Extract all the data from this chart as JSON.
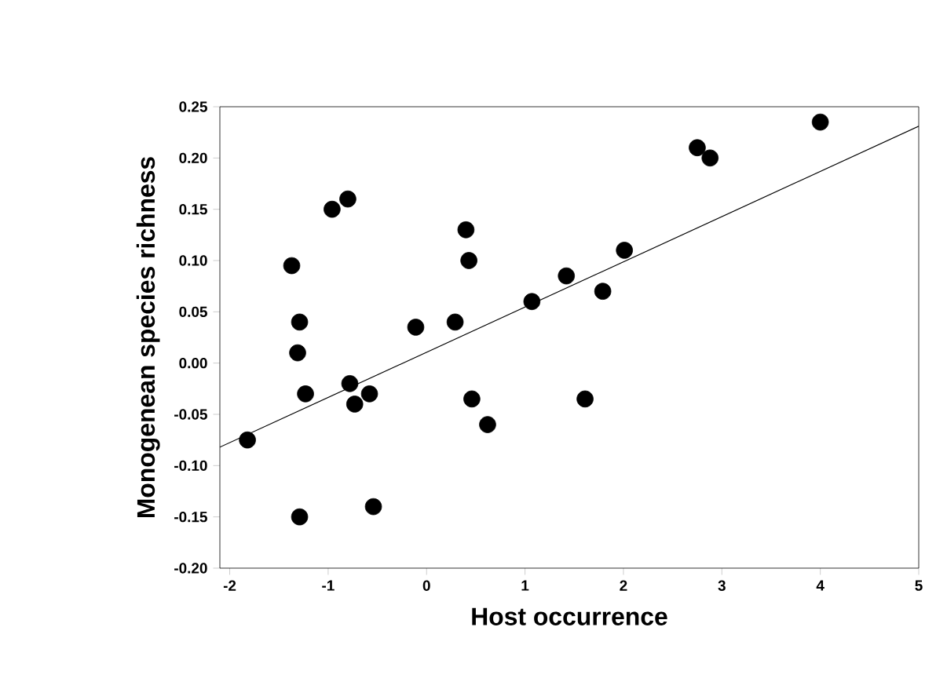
{
  "chart_data": {
    "type": "scatter",
    "xlabel": "Host occurrence",
    "ylabel": "Monogenean species richness",
    "xlim": [
      -2.1,
      5
    ],
    "ylim": [
      -0.2,
      0.25
    ],
    "xticks": [
      -2,
      -1,
      0,
      1,
      2,
      3,
      4,
      5
    ],
    "yticks": [
      {
        "value": -0.2,
        "label": "-0.20"
      },
      {
        "value": -0.15,
        "label": "-0.15"
      },
      {
        "value": -0.1,
        "label": "-0.10"
      },
      {
        "value": -0.05,
        "label": "-0.05"
      },
      {
        "value": 0,
        "label": "0.00"
      },
      {
        "value": 0.05,
        "label": "0.05"
      },
      {
        "value": 0.1,
        "label": "0.10"
      },
      {
        "value": 0.15,
        "label": "0.15"
      },
      {
        "value": 0.2,
        "label": "0.20"
      },
      {
        "value": 0.25,
        "label": "0.25"
      }
    ],
    "series": [
      {
        "marker": "circle",
        "color": "#000000",
        "x": [
          -1.82,
          -1.37,
          -1.29,
          -1.31,
          -1.23,
          -1.29,
          -0.96,
          -0.8,
          -0.78,
          -0.73,
          -0.58,
          -0.54,
          -0.11,
          0.29,
          0.4,
          0.43,
          0.46,
          0.62,
          1.07,
          1.42,
          1.79,
          1.61,
          2.01,
          2.75,
          2.88,
          4.0
        ],
        "values": [
          -0.075,
          0.095,
          0.04,
          0.01,
          -0.03,
          -0.15,
          0.15,
          0.16,
          -0.02,
          -0.04,
          -0.03,
          -0.14,
          0.035,
          0.04,
          0.13,
          0.1,
          -0.035,
          -0.06,
          0.06,
          0.085,
          0.07,
          -0.035,
          0.11,
          0.21,
          0.2,
          0.235
        ]
      },
      {
        "type": "line",
        "marker": "none",
        "color": "#000000",
        "x": [
          -2.1,
          5
        ],
        "values": [
          -0.082,
          0.231
        ]
      }
    ]
  }
}
